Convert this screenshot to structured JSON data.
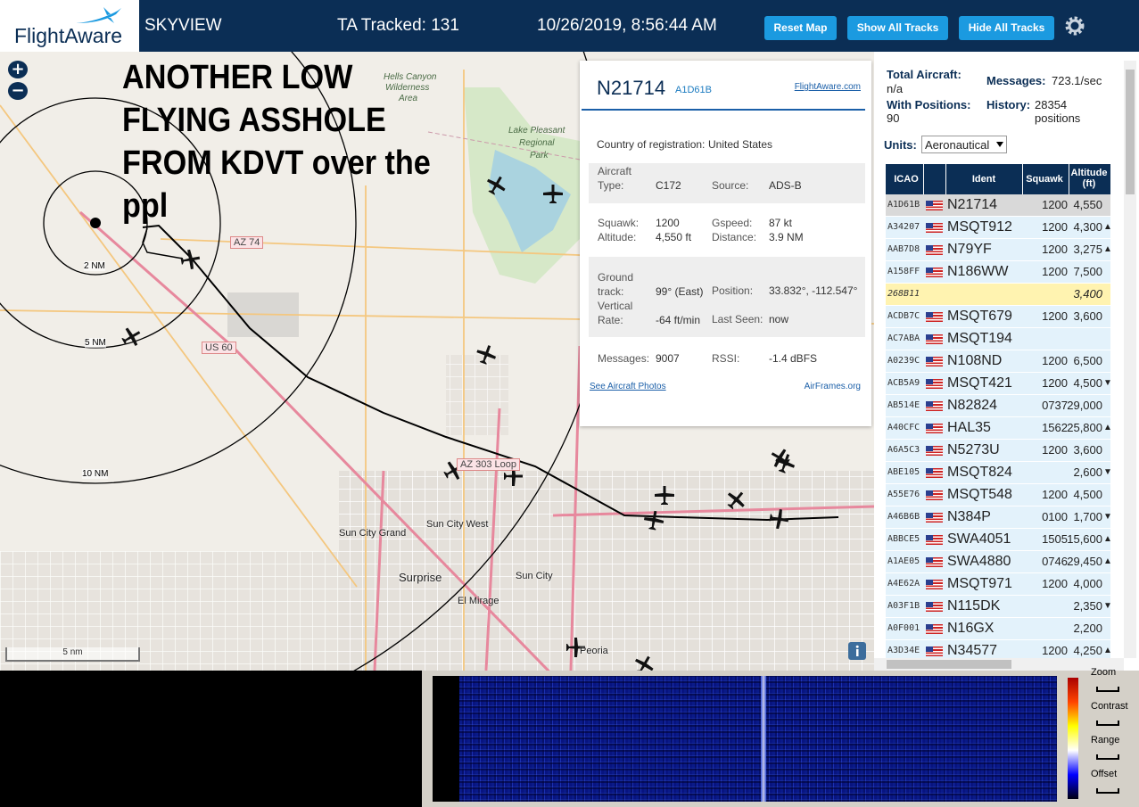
{
  "header": {
    "logo": "FlightAware",
    "app": "SKYVIEW",
    "tracked": "TA Tracked: 131",
    "datetime": "10/26/2019, 8:56:44 AM",
    "buttons": [
      "Reset Map",
      "Show All Tracks",
      "Hide All Tracks"
    ]
  },
  "map": {
    "zoom_in": "+",
    "zoom_out": "−",
    "annotation": [
      "ANOTHER  LOW",
      "FLYING ASSHOLE",
      "FROM KDVT over the",
      "ppl"
    ],
    "labels": [
      "Hells Canyon",
      "Wilderness",
      "Area",
      "Lake Pleasant",
      "Regional",
      "Park",
      "AZ 74",
      "US 60",
      "AZ 303 Loop",
      "Sun City West",
      "Sun City Grand",
      "Surprise",
      "Sun City",
      "El Mirage",
      "Peoria"
    ],
    "rings": [
      "2 NM",
      "5 NM",
      "10 NM"
    ],
    "scale": "5 nm"
  },
  "popup": {
    "ident": "N21714",
    "hex": "A1D61B",
    "link": "FlightAware.com",
    "country_label": "Country of registration:",
    "country": "United States",
    "fields": [
      {
        "label": "Aircraft Type:",
        "value": "C172"
      },
      {
        "label": "Source:",
        "value": "ADS-B"
      },
      {
        "label": "Squawk:",
        "value": "1200"
      },
      {
        "label": "Gspeed:",
        "value": "87 kt"
      },
      {
        "label": "Altitude:",
        "value": "4,550 ft"
      },
      {
        "label": "Distance:",
        "value": "3.9 NM"
      },
      {
        "label": "Ground track:",
        "value": "99° (East)"
      },
      {
        "label": "Position:",
        "value": "33.832°, -112.547°"
      },
      {
        "label": "Vertical Rate:",
        "value": "-64 ft/min"
      },
      {
        "label": "Last Seen:",
        "value": "now"
      },
      {
        "label": "Messages:",
        "value": "9007"
      },
      {
        "label": "RSSI:",
        "value": "-1.4 dBFS"
      }
    ],
    "photos": "See Aircraft Photos",
    "airframes": "AirFrames.org"
  },
  "stats": {
    "total_label": "Total Aircraft:",
    "total": "n/a",
    "messages_label": "Messages:",
    "messages": "723.1/sec",
    "positions_label": "With Positions:",
    "positions": "90",
    "history_label": "History:",
    "history": "28354 positions",
    "units_label": "Units:",
    "units": "Aeronautical"
  },
  "table": {
    "columns": [
      "ICAO",
      "Ident",
      "Squawk",
      "Altitude (ft)"
    ],
    "rows": [
      {
        "icao": "A1D61B",
        "ident": "N21714",
        "squawk": "1200",
        "altitude": "4,550"
      },
      {
        "icao": "A34207",
        "ident": "MSQT912",
        "squawk": "1200",
        "altitude": "4,300",
        "trend": "▲"
      },
      {
        "icao": "AAB7D8",
        "ident": "N79YF",
        "squawk": "1200",
        "altitude": "3,275",
        "trend": "▲"
      },
      {
        "icao": "A158FF",
        "ident": "N186WW",
        "squawk": "1200",
        "altitude": "7,500"
      },
      {
        "icao": "268B11",
        "altitude": "3,400"
      },
      {
        "icao": "ACDB7C",
        "ident": "MSQT679",
        "squawk": "1200",
        "altitude": "3,600"
      },
      {
        "icao": "AC7ABA",
        "ident": "MSQT194"
      },
      {
        "icao": "A0239C",
        "ident": "N108ND",
        "squawk": "1200",
        "altitude": "6,500"
      },
      {
        "icao": "ACB5A9",
        "ident": "MSQT421",
        "squawk": "1200",
        "altitude": "4,500",
        "trend": "▼"
      },
      {
        "icao": "AB514E",
        "ident": "N82824",
        "squawk": "0737",
        "altitude": "29,000"
      },
      {
        "icao": "A40CFC",
        "ident": "HAL35",
        "squawk": "1562",
        "altitude": "25,800",
        "trend": "▲"
      },
      {
        "icao": "A6A5C3",
        "ident": "N5273U",
        "squawk": "1200",
        "altitude": "3,600"
      },
      {
        "icao": "ABE105",
        "ident": "MSQT824",
        "altitude": "2,600",
        "trend": "▼"
      },
      {
        "icao": "A55E76",
        "ident": "MSQT548",
        "squawk": "1200",
        "altitude": "4,500"
      },
      {
        "icao": "A46B6B",
        "ident": "N384P",
        "squawk": "0100",
        "altitude": "1,700",
        "trend": "▼"
      },
      {
        "icao": "ABBCE5",
        "ident": "SWA4051",
        "squawk": "1505",
        "altitude": "15,600",
        "trend": "▲"
      },
      {
        "icao": "A1AE05",
        "ident": "SWA4880",
        "squawk": "0746",
        "altitude": "29,450",
        "trend": "▲"
      },
      {
        "icao": "A4E62A",
        "ident": "MSQT971",
        "squawk": "1200",
        "altitude": "4,000"
      },
      {
        "icao": "A03F1B",
        "ident": "N115DK",
        "altitude": "2,350",
        "trend": "▼"
      },
      {
        "icao": "A0F001",
        "ident": "N16GX",
        "altitude": "2,200"
      },
      {
        "icao": "A3D34E",
        "ident": "N34577",
        "squawk": "1200",
        "altitude": "4,250",
        "trend": "▲"
      }
    ]
  },
  "waterfall": {
    "controls": [
      "Zoom",
      "Contrast",
      "Range",
      "Offset"
    ]
  }
}
